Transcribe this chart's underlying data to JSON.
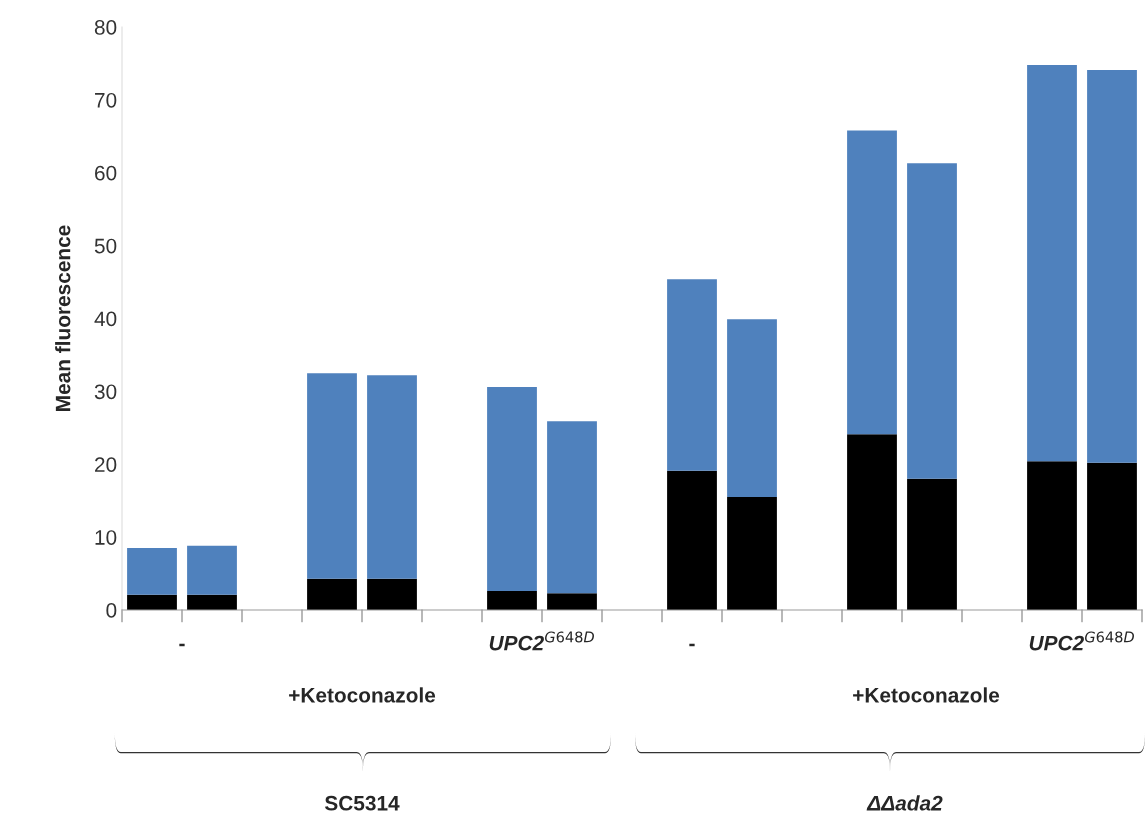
{
  "chart_data": {
    "type": "bar",
    "stacked": true,
    "ylabel": "Mean fluorescence",
    "categories": [
      null,
      null,
      null,
      null,
      null,
      null,
      null,
      null,
      null,
      null,
      null,
      null,
      null,
      null,
      null,
      null,
      null
    ],
    "series": [
      {
        "color": "#000000",
        "values": [
          2.1,
          2.1,
          null,
          4.3,
          4.3,
          null,
          2.6,
          2.3,
          null,
          19.1,
          15.5,
          null,
          24.1,
          18.0,
          null,
          20.4,
          20.2
        ]
      },
      {
        "color": "#4f81bd",
        "values": [
          6.4,
          6.7,
          null,
          28.2,
          27.9,
          null,
          28.0,
          23.6,
          null,
          26.3,
          24.4,
          null,
          41.7,
          43.3,
          null,
          54.4,
          53.9
        ]
      }
    ],
    "ylim": [
      0,
      80
    ],
    "yticks": [
      0,
      10,
      20,
      30,
      40,
      50,
      60,
      70,
      80
    ],
    "grid": false,
    "legend": false,
    "annotations": [
      "-",
      "UPC2$^{G648D}$",
      "+Ketoconazole",
      "-",
      "UPC2$^{G648D}$",
      "+Ketoconazole",
      "SC5314",
      "ΔΔada2"
    ]
  }
}
